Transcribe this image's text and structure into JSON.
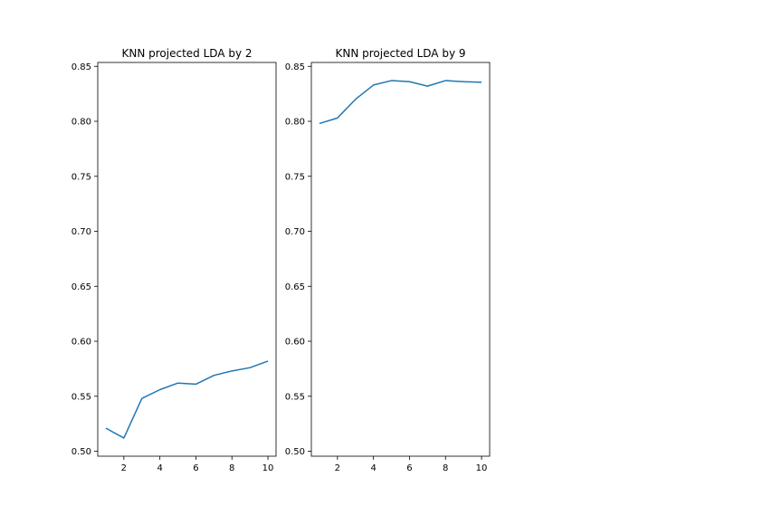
{
  "chart_data": [
    {
      "type": "line",
      "title": "KNN projected LDA by 2",
      "xlabel": "",
      "ylabel": "",
      "x": [
        1,
        2,
        3,
        4,
        5,
        6,
        7,
        8,
        9,
        10
      ],
      "series": [
        {
          "values": [
            0.521,
            0.512,
            0.548,
            0.556,
            0.562,
            0.561,
            0.569,
            0.573,
            0.576,
            0.582
          ],
          "color": "#1f77b4"
        }
      ],
      "xlim": [
        0.55,
        10.45
      ],
      "ylim": [
        0.4955,
        0.8535
      ],
      "x_ticks": [
        2,
        4,
        6,
        8,
        10
      ],
      "x_tick_labels": [
        "2",
        "4",
        "6",
        "8",
        "10"
      ],
      "y_ticks": [
        0.5,
        0.55,
        0.6,
        0.65,
        0.7,
        0.75,
        0.8,
        0.85
      ],
      "y_tick_labels": [
        "0.50",
        "0.55",
        "0.60",
        "0.65",
        "0.70",
        "0.75",
        "0.80",
        "0.85"
      ],
      "grid": false,
      "legend": "none"
    },
    {
      "type": "line",
      "title": "KNN projected LDA by 9",
      "xlabel": "",
      "ylabel": "",
      "x": [
        1,
        2,
        3,
        4,
        5,
        6,
        7,
        8,
        9,
        10
      ],
      "series": [
        {
          "values": [
            0.798,
            0.803,
            0.82,
            0.833,
            0.837,
            0.836,
            0.832,
            0.837,
            0.836,
            0.8355
          ],
          "color": "#1f77b4"
        }
      ],
      "xlim": [
        0.55,
        10.45
      ],
      "ylim": [
        0.4955,
        0.8535
      ],
      "x_ticks": [
        2,
        4,
        6,
        8,
        10
      ],
      "x_tick_labels": [
        "2",
        "4",
        "6",
        "8",
        "10"
      ],
      "y_ticks": [
        0.5,
        0.55,
        0.6,
        0.65,
        0.7,
        0.75,
        0.8,
        0.85
      ],
      "y_tick_labels": [
        "0.50",
        "0.55",
        "0.60",
        "0.65",
        "0.70",
        "0.75",
        "0.80",
        "0.85"
      ],
      "grid": false,
      "legend": "none"
    }
  ]
}
